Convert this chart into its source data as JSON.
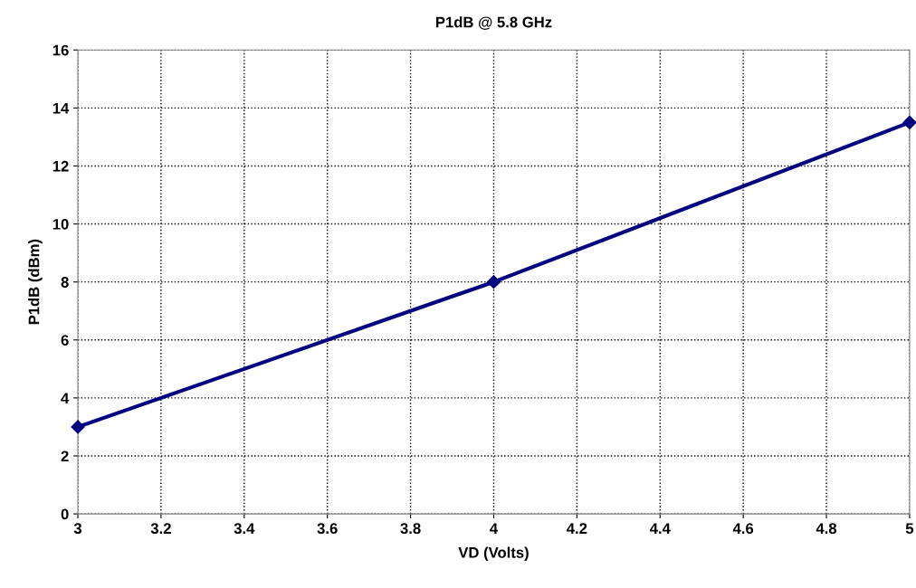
{
  "chart_data": {
    "type": "line",
    "title": "P1dB @ 5.8 GHz",
    "xlabel": "VD (Volts)",
    "ylabel": "P1dB (dBm)",
    "x": [
      3,
      4,
      5
    ],
    "series": [
      {
        "color": "#000080",
        "values": [
          3,
          8,
          13.5
        ]
      }
    ],
    "xlim": [
      3,
      5
    ],
    "xticks": [
      3,
      3.2,
      3.4,
      3.6,
      3.8,
      4,
      4.2,
      4.4,
      4.6,
      4.8,
      5
    ],
    "ylim": [
      0,
      16
    ],
    "yticks": [
      0,
      2,
      4,
      6,
      8,
      10,
      12,
      14,
      16
    ],
    "grid": true,
    "marker": "diamond",
    "line_style": "solid"
  }
}
